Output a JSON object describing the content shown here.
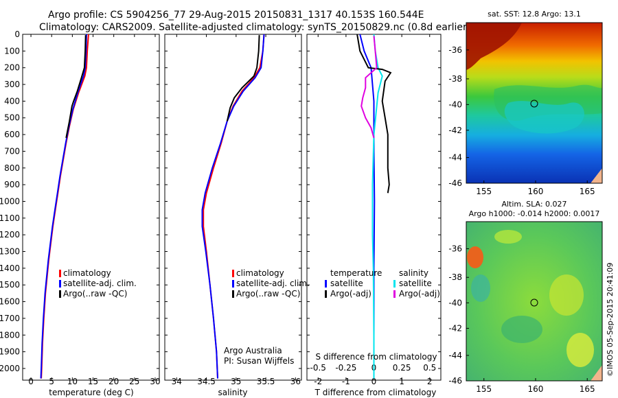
{
  "header": {
    "line1": "Argo profile: CS 5904256_77 29-Aug-2015 20150831_1317 40.153S 160.544E",
    "line2": "Climatology: CARS2009. Satellite-adjusted climatology: synTS_20150829.nc (0.8d earlier)"
  },
  "colors": {
    "red": "#ff0000",
    "blue": "#0000ff",
    "black": "#000000",
    "cyan": "#00e5ee",
    "magenta": "#e000e0"
  },
  "credits": {
    "org": "Argo Australia",
    "pi": "PI: Susan Wijffels",
    "stamp": "©IMOS 05-Sep-2015 20:41:09"
  },
  "chart_data": [
    {
      "type": "line",
      "xlabel": "temperature (deg C)",
      "ylabel": "",
      "xlim": [
        -2,
        31
      ],
      "ylim": [
        2070,
        0
      ],
      "xticks": [
        0,
        5,
        10,
        15,
        20,
        25,
        30
      ],
      "yticks": [
        0,
        100,
        200,
        300,
        400,
        500,
        600,
        700,
        800,
        900,
        1000,
        1100,
        1200,
        1300,
        1400,
        1500,
        1600,
        1700,
        1800,
        1900,
        2000
      ],
      "legend": {
        "position": "lower-left",
        "entries": [
          "climatology",
          "satellite-adj. clim.",
          "Argo(..raw -QC)"
        ]
      },
      "series": [
        {
          "name": "climatology",
          "color": "red",
          "points": [
            [
              13.9,
              0
            ],
            [
              13.6,
              100
            ],
            [
              13.4,
              200
            ],
            [
              13.0,
              250
            ],
            [
              11.5,
              350
            ],
            [
              10.2,
              450
            ],
            [
              9.3,
              550
            ],
            [
              8.5,
              650
            ],
            [
              7.8,
              750
            ],
            [
              7.1,
              850
            ],
            [
              6.5,
              950
            ],
            [
              5.9,
              1050
            ],
            [
              5.3,
              1150
            ],
            [
              4.8,
              1250
            ],
            [
              4.3,
              1350
            ],
            [
              3.9,
              1450
            ],
            [
              3.5,
              1550
            ],
            [
              3.1,
              1700
            ],
            [
              2.8,
              1850
            ],
            [
              2.6,
              2000
            ],
            [
              2.5,
              2060
            ]
          ]
        },
        {
          "name": "satellite-adj. clim.",
          "color": "blue",
          "points": [
            [
              13.4,
              0
            ],
            [
              13.3,
              100
            ],
            [
              13.1,
              200
            ],
            [
              12.7,
              250
            ],
            [
              11.3,
              350
            ],
            [
              10.1,
              450
            ],
            [
              9.2,
              550
            ],
            [
              8.4,
              650
            ],
            [
              7.7,
              750
            ],
            [
              7.0,
              850
            ],
            [
              6.4,
              950
            ],
            [
              5.8,
              1050
            ],
            [
              5.2,
              1150
            ],
            [
              4.7,
              1250
            ],
            [
              4.2,
              1350
            ],
            [
              3.8,
              1450
            ],
            [
              3.4,
              1550
            ],
            [
              3.0,
              1700
            ],
            [
              2.7,
              1850
            ],
            [
              2.5,
              2000
            ],
            [
              2.4,
              2060
            ]
          ]
        },
        {
          "name": "Argo(..raw -QC)",
          "color": "black",
          "points": [
            [
              13.2,
              5
            ],
            [
              13.1,
              100
            ],
            [
              12.9,
              200
            ],
            [
              12.2,
              260
            ],
            [
              11.2,
              340
            ],
            [
              10.3,
              400
            ],
            [
              9.9,
              430
            ],
            [
              9.3,
              520
            ],
            [
              8.5,
              620
            ]
          ]
        }
      ]
    },
    {
      "type": "line",
      "xlabel": "salinity",
      "ylabel": "",
      "xlim": [
        33.8,
        36.1
      ],
      "ylim": [
        2070,
        0
      ],
      "xticks": [
        34,
        34.5,
        35,
        35.5,
        36
      ],
      "legend": {
        "position": "lower-left",
        "entries": [
          "climatology",
          "satellite-adj. clim.",
          "Argo(..raw -QC)"
        ]
      },
      "series": [
        {
          "name": "climatology",
          "color": "red",
          "points": [
            [
              35.47,
              0
            ],
            [
              35.45,
              100
            ],
            [
              35.4,
              200
            ],
            [
              35.3,
              260
            ],
            [
              35.1,
              340
            ],
            [
              34.95,
              430
            ],
            [
              34.85,
              520
            ],
            [
              34.75,
              650
            ],
            [
              34.62,
              800
            ],
            [
              34.5,
              950
            ],
            [
              34.45,
              1050
            ],
            [
              34.45,
              1150
            ],
            [
              34.5,
              1300
            ],
            [
              34.56,
              1500
            ],
            [
              34.62,
              1700
            ],
            [
              34.67,
              1900
            ],
            [
              34.69,
              2060
            ]
          ]
        },
        {
          "name": "satellite-adj. clim.",
          "color": "blue",
          "points": [
            [
              35.47,
              0
            ],
            [
              35.45,
              100
            ],
            [
              35.42,
              200
            ],
            [
              35.32,
              260
            ],
            [
              35.12,
              340
            ],
            [
              34.96,
              430
            ],
            [
              34.85,
              520
            ],
            [
              34.74,
              650
            ],
            [
              34.6,
              800
            ],
            [
              34.48,
              950
            ],
            [
              34.43,
              1050
            ],
            [
              34.43,
              1150
            ],
            [
              34.49,
              1300
            ],
            [
              34.56,
              1500
            ],
            [
              34.62,
              1700
            ],
            [
              34.67,
              1900
            ],
            [
              34.69,
              2060
            ]
          ]
        },
        {
          "name": "Argo(..raw -QC)",
          "color": "black",
          "points": [
            [
              35.39,
              5
            ],
            [
              35.38,
              100
            ],
            [
              35.35,
              200
            ],
            [
              35.3,
              250
            ],
            [
              35.1,
              320
            ],
            [
              34.97,
              380
            ],
            [
              34.9,
              440
            ],
            [
              34.85,
              520
            ]
          ]
        }
      ]
    },
    {
      "type": "line",
      "xlabel": "T difference from climatology",
      "xlabel2": "S difference from climatology",
      "xlim": [
        -2.4,
        2.4
      ],
      "ylim": [
        2070,
        0
      ],
      "xticks": [
        -2,
        -1,
        0,
        1,
        2
      ],
      "xticks2": [
        "-0.5",
        "-0.25",
        "0",
        "0.25",
        "0.5"
      ],
      "legend": {
        "position": "lower",
        "temp_title": "temperature",
        "sal_title": "salinity",
        "temp_entries": [
          "satellite",
          "Argo(-adj)"
        ],
        "sal_entries": [
          "satellite",
          "Argo(-adj)"
        ]
      },
      "series": [
        {
          "name": "satellite",
          "color": "blue",
          "points": [
            [
              -0.5,
              0
            ],
            [
              -0.35,
              100
            ],
            [
              -0.1,
              200
            ],
            [
              0,
              400
            ],
            [
              0,
              700
            ],
            [
              0.02,
              1000
            ],
            [
              0,
              1400
            ],
            [
              0,
              1800
            ],
            [
              0,
              2060
            ]
          ]
        },
        {
          "name": "satellite",
          "color": "cyan",
          "points": [
            [
              0,
              0
            ],
            [
              0.05,
              100
            ],
            [
              0.15,
              200
            ],
            [
              0.3,
              250
            ],
            [
              0.15,
              350
            ],
            [
              0,
              600
            ],
            [
              -0.05,
              900
            ],
            [
              -0.05,
              1200
            ],
            [
              -0.02,
              1400
            ],
            [
              0,
              1800
            ],
            [
              0,
              2060
            ]
          ]
        },
        {
          "name": "Argo(-adj)",
          "color": "black",
          "points": [
            [
              -0.6,
              0
            ],
            [
              -0.5,
              100
            ],
            [
              -0.2,
              200
            ],
            [
              0.3,
              210
            ],
            [
              0.6,
              230
            ],
            [
              0.4,
              280
            ],
            [
              0.3,
              400
            ],
            [
              0.4,
              500
            ],
            [
              0.5,
              600
            ],
            [
              0.5,
              700
            ],
            [
              0.5,
              800
            ],
            [
              0.55,
              900
            ],
            [
              0.5,
              950
            ]
          ]
        },
        {
          "name": "Argo(-adj)",
          "color": "magenta",
          "points": [
            [
              0,
              10
            ],
            [
              0.05,
              100
            ],
            [
              0.1,
              200
            ],
            [
              -0.3,
              260
            ],
            [
              -0.3,
              320
            ],
            [
              -0.4,
              380
            ],
            [
              -0.45,
              430
            ],
            [
              -0.3,
              500
            ],
            [
              -0.1,
              560
            ],
            [
              0,
              620
            ]
          ]
        }
      ]
    }
  ],
  "maps": [
    {
      "title": "sat. SST: 12.8 Argo: 13.1",
      "title2": "",
      "lon_ticks": [
        "155",
        "160",
        "165"
      ],
      "lat_ticks": [
        "-36",
        "-38",
        "-40",
        "-42",
        "-44",
        "-46"
      ],
      "colormap": "jet"
    },
    {
      "title": "Altim. SLA: 0.027",
      "title2": "Argo h1000: -0.014 h2000: 0.0017",
      "lon_ticks": [
        "155",
        "160",
        "165"
      ],
      "lat_ticks": [
        "-36",
        "-38",
        "-40",
        "-42",
        "-44",
        "-46"
      ],
      "colormap": "jet"
    }
  ]
}
